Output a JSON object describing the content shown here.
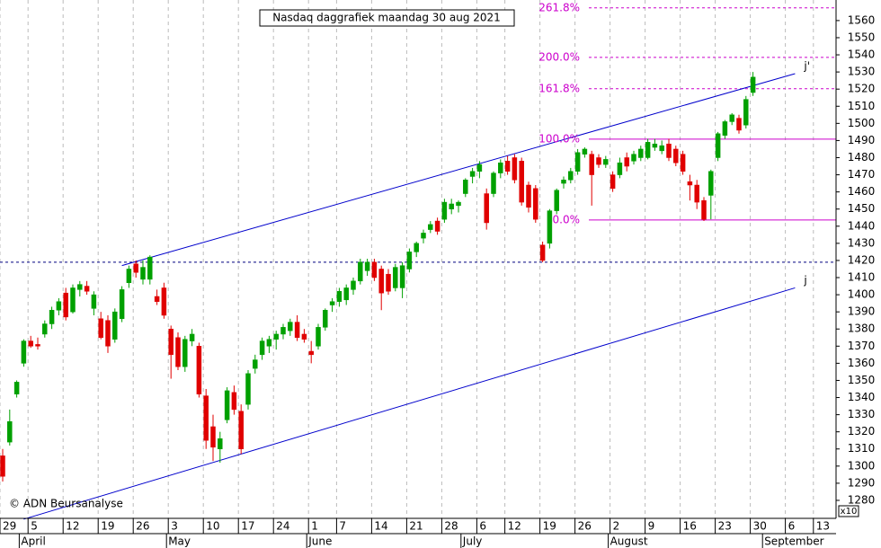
{
  "chart_data": {
    "type": "candlestick",
    "title": "Nasdaq daggrafiek maandag 30 aug 2021",
    "copyright": "© ADN Beursanalyse",
    "scale_note": "x10",
    "categories": [
      "29",
      null,
      null,
      null,
      "5",
      null,
      null,
      null,
      null,
      "12",
      null,
      null,
      null,
      null,
      "19",
      null,
      null,
      null,
      null,
      "26",
      null,
      null,
      null,
      null,
      "3",
      null,
      null,
      null,
      null,
      "10",
      null,
      null,
      null,
      null,
      "17",
      null,
      null,
      null,
      null,
      "24",
      null,
      null,
      null,
      null,
      "1",
      null,
      null,
      null,
      "7",
      null,
      null,
      null,
      null,
      "14",
      null,
      null,
      null,
      null,
      "21",
      null,
      null,
      null,
      null,
      "28",
      null,
      null,
      null,
      null,
      "6",
      null,
      null,
      null,
      "12",
      null,
      null,
      null,
      null,
      "19",
      null,
      null,
      null,
      null,
      "26",
      null,
      null,
      null,
      null,
      "2",
      null,
      null,
      null,
      null,
      "9",
      null,
      null,
      null,
      null,
      "16",
      null,
      null,
      null,
      null,
      "23",
      null,
      null,
      null,
      null,
      "30",
      null,
      null,
      null,
      null,
      "6",
      null,
      null,
      null,
      "13"
    ],
    "months": [
      null,
      null,
      null,
      "April",
      null,
      null,
      null,
      null,
      null,
      null,
      null,
      null,
      null,
      null,
      null,
      null,
      null,
      null,
      null,
      null,
      null,
      null,
      null,
      null,
      "May",
      null,
      null,
      null,
      null,
      null,
      null,
      null,
      null,
      null,
      null,
      null,
      null,
      null,
      null,
      null,
      null,
      null,
      null,
      null,
      "June",
      null,
      null,
      null,
      null,
      null,
      null,
      null,
      null,
      null,
      null,
      null,
      null,
      null,
      null,
      null,
      null,
      null,
      null,
      null,
      null,
      null,
      "July",
      null,
      null,
      null,
      null,
      null,
      null,
      null,
      null,
      null,
      null,
      null,
      null,
      null,
      null,
      null,
      null,
      null,
      null,
      null,
      null,
      "August",
      null,
      null,
      null,
      null,
      null,
      null,
      null,
      null,
      null,
      null,
      null,
      null,
      null,
      null,
      null,
      null,
      null,
      null,
      null,
      null,
      null,
      "September",
      null,
      null,
      null,
      null,
      null,
      null,
      null
    ],
    "open": [
      1306,
      1314,
      1342,
      1360,
      1373,
      1371,
      1377,
      1383,
      1391,
      1401,
      1390,
      1403,
      1405,
      1392,
      1386,
      1385,
      1374,
      1386,
      1407,
      1418,
      1409,
      1409,
      1399,
      1404,
      1380,
      1375,
      1358,
      1373,
      1370,
      1341,
      1323,
      1310,
      1327,
      1343,
      1332,
      1336,
      1357,
      1365,
      1370,
      1374,
      1377,
      1379,
      1384,
      1377,
      1367,
      1370,
      1381,
      1394,
      1396,
      1397,
      1403,
      1408,
      1414,
      1419,
      1415,
      1412,
      1404,
      1404,
      1415,
      1425,
      1433,
      1438,
      1443,
      1444,
      1450,
      1452,
      1459,
      1469,
      1472,
      1459,
      1459,
      1471,
      1478,
      1480,
      1478,
      1464,
      1462,
      1429,
      1430,
      1449,
      1465,
      1467,
      1472,
      1482,
      1482,
      1480,
      1476,
      1470,
      1470,
      1480,
      1478,
      1480,
      1480,
      1486,
      1484,
      1488,
      1485,
      1482,
      1466,
      1464,
      1455,
      1458,
      1480,
      1493,
      1501,
      1503,
      1499,
      1518,
      null,
      null,
      null,
      null,
      null,
      null,
      null,
      null,
      null
    ],
    "high": [
      1310,
      1333,
      1350,
      1374,
      1376,
      1375,
      1385,
      1393,
      1398,
      1404,
      1406,
      1408,
      1408,
      1402,
      1390,
      1388,
      1392,
      1405,
      1417,
      1420,
      1420,
      1423,
      1403,
      1407,
      1382,
      1378,
      1376,
      1380,
      1372,
      1345,
      1330,
      1320,
      1346,
      1347,
      1336,
      1356,
      1365,
      1375,
      1376,
      1379,
      1383,
      1386,
      1388,
      1380,
      1373,
      1383,
      1392,
      1398,
      1404,
      1406,
      1410,
      1421,
      1421,
      1421,
      1417,
      1415,
      1418,
      1419,
      1427,
      1431,
      1438,
      1443,
      1445,
      1456,
      1456,
      1455,
      1468,
      1474,
      1478,
      1462,
      1472,
      1479,
      1481,
      1482,
      1480,
      1466,
      1464,
      1431,
      1450,
      1462,
      1469,
      1474,
      1485,
      1486,
      1484,
      1482,
      1481,
      1472,
      1480,
      1483,
      1484,
      1487,
      1491,
      1491,
      1490,
      1491,
      1487,
      1484,
      1470,
      1467,
      1457,
      1473,
      1495,
      1502,
      1506,
      1505,
      1516,
      1530,
      null,
      null,
      null,
      null,
      null,
      null,
      null,
      null,
      null
    ],
    "low": [
      1291,
      1312,
      1340,
      1358,
      1369,
      1368,
      1375,
      1380,
      1388,
      1385,
      1389,
      1399,
      1400,
      1388,
      1374,
      1366,
      1372,
      1384,
      1404,
      1410,
      1406,
      1406,
      1394,
      1386,
      1351,
      1356,
      1355,
      1370,
      1340,
      1310,
      1303,
      1302,
      1325,
      1330,
      1307,
      1333,
      1354,
      1362,
      1366,
      1368,
      1374,
      1376,
      1373,
      1372,
      1360,
      1368,
      1379,
      1390,
      1393,
      1394,
      1400,
      1406,
      1411,
      1408,
      1391,
      1400,
      1402,
      1398,
      1413,
      1422,
      1430,
      1436,
      1435,
      1442,
      1447,
      1448,
      1457,
      1465,
      1468,
      1438,
      1457,
      1468,
      1470,
      1465,
      1452,
      1448,
      1442,
      1419,
      1427,
      1447,
      1462,
      1465,
      1470,
      1480,
      1452,
      1474,
      1474,
      1460,
      1468,
      1472,
      1476,
      1478,
      1479,
      1484,
      1482,
      1478,
      1475,
      1470,
      1455,
      1450,
      1443,
      1444,
      1478,
      1491,
      1499,
      1494,
      1497,
      1516,
      null,
      null,
      null,
      null,
      null,
      null,
      null,
      null,
      null
    ],
    "close": [
      1294,
      1326,
      1349,
      1373,
      1370,
      1370,
      1383,
      1391,
      1396,
      1387,
      1404,
      1406,
      1402,
      1400,
      1375,
      1370,
      1390,
      1403,
      1415,
      1413,
      1416,
      1422,
      1396,
      1388,
      1365,
      1358,
      1374,
      1377,
      1342,
      1315,
      1311,
      1316,
      1344,
      1333,
      1310,
      1354,
      1362,
      1373,
      1374,
      1377,
      1381,
      1384,
      1375,
      1374,
      1365,
      1381,
      1391,
      1396,
      1402,
      1404,
      1408,
      1419,
      1419,
      1410,
      1401,
      1402,
      1416,
      1417,
      1425,
      1430,
      1436,
      1441,
      1437,
      1454,
      1453,
      1454,
      1467,
      1472,
      1476,
      1442,
      1471,
      1477,
      1472,
      1467,
      1454,
      1451,
      1444,
      1420,
      1449,
      1461,
      1467,
      1472,
      1483,
      1485,
      1470,
      1476,
      1479,
      1462,
      1477,
      1475,
      1482,
      1485,
      1489,
      1488,
      1487,
      1480,
      1477,
      1472,
      1464,
      1454,
      1444,
      1472,
      1494,
      1501,
      1505,
      1496,
      1514,
      1527,
      null,
      null,
      null,
      null,
      null,
      null,
      null,
      null,
      null
    ],
    "up_color": "#00a000",
    "down_color": "#e00000",
    "ylim": [
      1269.5,
      1572
    ],
    "yticks": [
      1280,
      1290,
      1300,
      1310,
      1320,
      1330,
      1340,
      1350,
      1360,
      1370,
      1380,
      1390,
      1400,
      1410,
      1420,
      1430,
      1440,
      1450,
      1460,
      1470,
      1480,
      1490,
      1500,
      1510,
      1520,
      1530,
      1540,
      1550,
      1560
    ],
    "grid": true,
    "fib_levels": [
      {
        "label": "261.8%",
        "value": 1567.4,
        "dashed": true
      },
      {
        "label": "200.0%",
        "value": 1538.5,
        "dashed": true
      },
      {
        "label": "161.8%",
        "value": 1520.2,
        "dashed": true
      },
      {
        "label": "100.0%",
        "value": 1490.8,
        "dashed": false
      },
      {
        "label": "0.0%",
        "value": 1443.6,
        "dashed": false
      }
    ],
    "fib_color": "#cc00cc",
    "reference_line": {
      "value": 1419,
      "color": "#000080"
    },
    "trendlines": [
      {
        "label": "j'",
        "color": "#0000cc",
        "x": [
          17,
          113
        ],
        "y": [
          1417,
          1529
        ]
      },
      {
        "label": "j",
        "color": "#0000cc",
        "x": [
          3,
          113
        ],
        "y": [
          1269,
          1404
        ]
      }
    ]
  }
}
